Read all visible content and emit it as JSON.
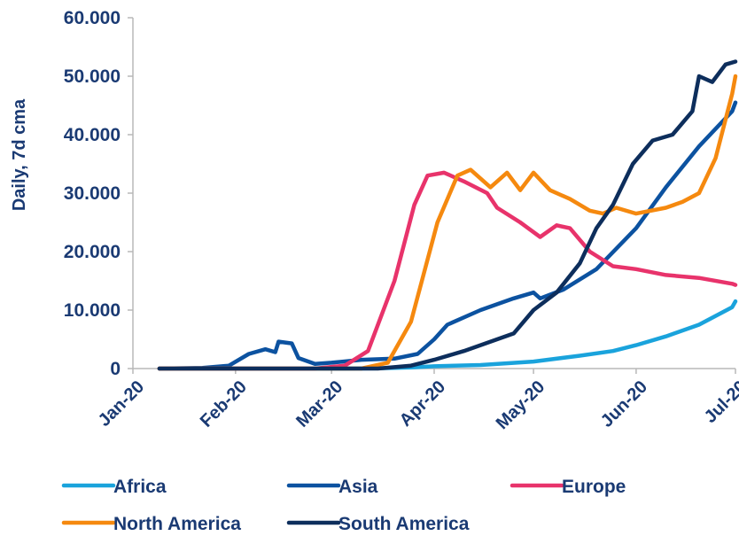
{
  "chart_data": {
    "type": "line",
    "ylabel": "Daily, 7d cma",
    "ylim": [
      0,
      60000
    ],
    "y_ticks": [
      0,
      10000,
      20000,
      30000,
      40000,
      50000,
      60000
    ],
    "y_tick_labels": [
      "0",
      "10.000",
      "20.000",
      "30.000",
      "40.000",
      "50.000",
      "60.000"
    ],
    "x_ticks": [
      "2020-01-01",
      "2020-02-01",
      "2020-03-01",
      "2020-04-01",
      "2020-05-01",
      "2020-06-01",
      "2020-07-01"
    ],
    "x_tick_labels": [
      "Jan-20",
      "Feb-20",
      "Mar-20",
      "Apr-20",
      "May-20",
      "Jun-20",
      "Jul-20"
    ],
    "xlim": [
      "2020-01-01",
      "2020-07-01"
    ],
    "grid": false,
    "legend_position": "bottom",
    "series": [
      {
        "name": "Africa",
        "color": "#1aa3dc",
        "points": [
          [
            "2020-01-09",
            0
          ],
          [
            "2020-03-01",
            0
          ],
          [
            "2020-03-15",
            50
          ],
          [
            "2020-03-25",
            200
          ],
          [
            "2020-04-01",
            400
          ],
          [
            "2020-04-15",
            600
          ],
          [
            "2020-05-01",
            1200
          ],
          [
            "2020-05-15",
            2200
          ],
          [
            "2020-05-25",
            3000
          ],
          [
            "2020-06-01",
            4000
          ],
          [
            "2020-06-10",
            5500
          ],
          [
            "2020-06-20",
            7500
          ],
          [
            "2020-06-30",
            10500
          ],
          [
            "2020-07-01",
            11500
          ]
        ]
      },
      {
        "name": "Asia",
        "color": "#0c52a0",
        "points": [
          [
            "2020-01-09",
            0
          ],
          [
            "2020-01-22",
            100
          ],
          [
            "2020-01-30",
            500
          ],
          [
            "2020-02-05",
            2500
          ],
          [
            "2020-02-10",
            3300
          ],
          [
            "2020-02-13",
            2800
          ],
          [
            "2020-02-14",
            4600
          ],
          [
            "2020-02-18",
            4300
          ],
          [
            "2020-02-20",
            1800
          ],
          [
            "2020-02-25",
            800
          ],
          [
            "2020-03-01",
            1000
          ],
          [
            "2020-03-10",
            1500
          ],
          [
            "2020-03-20",
            1700
          ],
          [
            "2020-03-27",
            2500
          ],
          [
            "2020-04-01",
            5000
          ],
          [
            "2020-04-05",
            7500
          ],
          [
            "2020-04-15",
            10000
          ],
          [
            "2020-04-25",
            12000
          ],
          [
            "2020-05-01",
            13000
          ],
          [
            "2020-05-03",
            12000
          ],
          [
            "2020-05-10",
            13500
          ],
          [
            "2020-05-20",
            17000
          ],
          [
            "2020-06-01",
            24000
          ],
          [
            "2020-06-10",
            31000
          ],
          [
            "2020-06-20",
            38000
          ],
          [
            "2020-06-30",
            44000
          ],
          [
            "2020-07-01",
            45500
          ]
        ]
      },
      {
        "name": "Europe",
        "color": "#e8336b",
        "points": [
          [
            "2020-01-09",
            0
          ],
          [
            "2020-02-25",
            0
          ],
          [
            "2020-03-05",
            500
          ],
          [
            "2020-03-12",
            3000
          ],
          [
            "2020-03-20",
            15000
          ],
          [
            "2020-03-26",
            28000
          ],
          [
            "2020-03-30",
            33000
          ],
          [
            "2020-04-04",
            33500
          ],
          [
            "2020-04-10",
            32000
          ],
          [
            "2020-04-17",
            30000
          ],
          [
            "2020-04-20",
            27500
          ],
          [
            "2020-04-27",
            25000
          ],
          [
            "2020-05-03",
            22500
          ],
          [
            "2020-05-08",
            24500
          ],
          [
            "2020-05-12",
            24000
          ],
          [
            "2020-05-18",
            20000
          ],
          [
            "2020-05-25",
            17500
          ],
          [
            "2020-06-01",
            17000
          ],
          [
            "2020-06-10",
            16000
          ],
          [
            "2020-06-20",
            15500
          ],
          [
            "2020-06-30",
            14500
          ],
          [
            "2020-07-01",
            14300
          ]
        ]
      },
      {
        "name": "North America",
        "color": "#f5890f",
        "points": [
          [
            "2020-01-09",
            0
          ],
          [
            "2020-03-10",
            0
          ],
          [
            "2020-03-18",
            1000
          ],
          [
            "2020-03-25",
            8000
          ],
          [
            "2020-04-02",
            25000
          ],
          [
            "2020-04-08",
            33000
          ],
          [
            "2020-04-12",
            34000
          ],
          [
            "2020-04-18",
            31000
          ],
          [
            "2020-04-23",
            33500
          ],
          [
            "2020-04-27",
            30500
          ],
          [
            "2020-05-01",
            33500
          ],
          [
            "2020-05-06",
            30500
          ],
          [
            "2020-05-12",
            29000
          ],
          [
            "2020-05-18",
            27000
          ],
          [
            "2020-05-22",
            26500
          ],
          [
            "2020-05-26",
            27500
          ],
          [
            "2020-06-01",
            26500
          ],
          [
            "2020-06-10",
            27500
          ],
          [
            "2020-06-15",
            28500
          ],
          [
            "2020-06-20",
            30000
          ],
          [
            "2020-06-25",
            36000
          ],
          [
            "2020-06-30",
            47000
          ],
          [
            "2020-07-01",
            50000
          ]
        ]
      },
      {
        "name": "South America",
        "color": "#0d2e5c",
        "points": [
          [
            "2020-01-09",
            0
          ],
          [
            "2020-03-15",
            0
          ],
          [
            "2020-03-25",
            500
          ],
          [
            "2020-04-01",
            1500
          ],
          [
            "2020-04-10",
            3000
          ],
          [
            "2020-04-20",
            5000
          ],
          [
            "2020-04-25",
            6000
          ],
          [
            "2020-05-01",
            10000
          ],
          [
            "2020-05-08",
            13000
          ],
          [
            "2020-05-15",
            18000
          ],
          [
            "2020-05-20",
            24000
          ],
          [
            "2020-05-25",
            28000
          ],
          [
            "2020-05-31",
            35000
          ],
          [
            "2020-06-06",
            39000
          ],
          [
            "2020-06-12",
            40000
          ],
          [
            "2020-06-18",
            44000
          ],
          [
            "2020-06-20",
            50000
          ],
          [
            "2020-06-24",
            49000
          ],
          [
            "2020-06-28",
            52000
          ],
          [
            "2020-07-01",
            52500
          ]
        ]
      }
    ]
  }
}
